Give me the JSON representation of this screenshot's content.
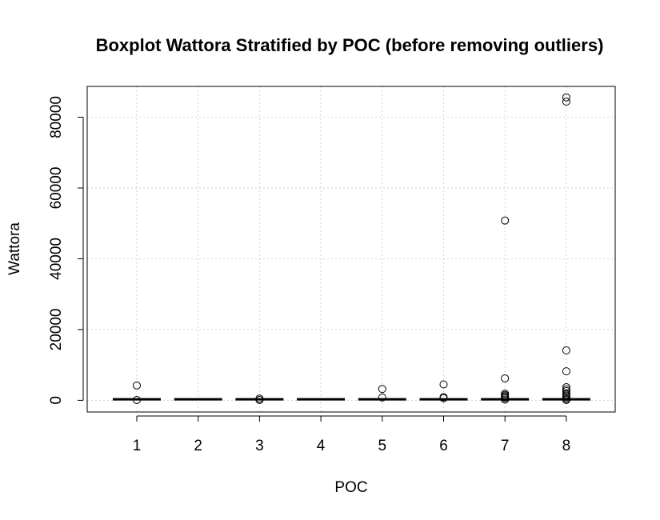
{
  "chart_data": {
    "type": "boxplot",
    "title": "Boxplot Wattora Stratified by POC (before removing outliers)",
    "xlabel": "POC",
    "ylabel": "Wattora",
    "categories": [
      "1",
      "2",
      "3",
      "4",
      "5",
      "6",
      "7",
      "8"
    ],
    "yticks": [
      0,
      20000,
      40000,
      60000,
      80000
    ],
    "ytick_labels": [
      "0",
      "20000",
      "40000",
      "60000",
      "80000"
    ],
    "ylim": [
      -3300,
      88700
    ],
    "grid": true,
    "boxes": [
      {
        "category": "1",
        "median": 300,
        "outliers": [
          4200,
          100
        ]
      },
      {
        "category": "2",
        "median": 300,
        "outliers": []
      },
      {
        "category": "3",
        "median": 300,
        "outliers": [
          500,
          100
        ]
      },
      {
        "category": "4",
        "median": 300,
        "outliers": []
      },
      {
        "category": "5",
        "median": 300,
        "outliers": [
          3200,
          800
        ]
      },
      {
        "category": "6",
        "median": 300,
        "outliers": [
          4500,
          900,
          600
        ]
      },
      {
        "category": "7",
        "median": 300,
        "outliers": [
          50800,
          6200,
          1900,
          1500,
          1200,
          900,
          600,
          200
        ]
      },
      {
        "category": "8",
        "median": 300,
        "outliers": [
          85600,
          84400,
          14100,
          8200,
          3700,
          3100,
          2600,
          2000,
          1600,
          1200,
          800,
          400,
          100
        ]
      }
    ]
  }
}
